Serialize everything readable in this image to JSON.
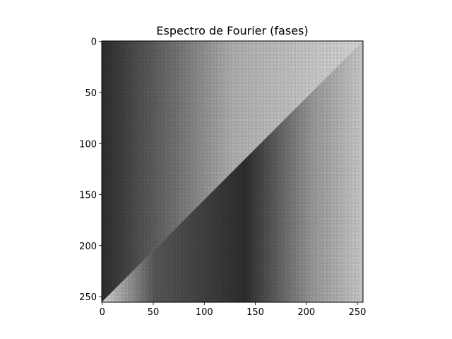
{
  "chart_data": {
    "type": "heatmap",
    "title": "Espectro de Fourier (fases)",
    "xlabel": "",
    "ylabel": "",
    "width": 256,
    "height": 256,
    "xlim": [
      0,
      255
    ],
    "ylim": [
      255,
      0
    ],
    "x_ticks": [
      0,
      50,
      100,
      150,
      200,
      250
    ],
    "y_ticks": [
      0,
      50,
      100,
      150,
      200,
      250
    ],
    "x_tick_labels": [
      "0",
      "50",
      "100",
      "150",
      "200",
      "250"
    ],
    "y_tick_labels": [
      "0",
      "50",
      "100",
      "150",
      "200",
      "250"
    ],
    "colormap": "gray",
    "grid": false,
    "legend": "none",
    "pattern": {
      "description_values": "phase spectrum; upper-left triangle dark-to-light, lower-right triangle light-to-dark, split along the diagonal",
      "light_color": "#dcdcdc",
      "dark_color": "#2e2e2e"
    }
  }
}
